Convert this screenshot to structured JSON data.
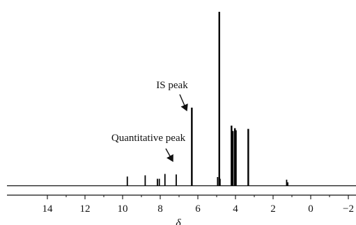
{
  "chart_data": {
    "type": "line",
    "title": "",
    "xlabel": "δ",
    "ylabel": "",
    "xlim": [
      16,
      -2.5
    ],
    "ylim": [
      0,
      1
    ],
    "x_reversed": true,
    "grid": false,
    "legend": "none",
    "xticks": [
      {
        "value": 14,
        "label": "14"
      },
      {
        "value": 12,
        "label": "12"
      },
      {
        "value": 10,
        "label": "10"
      },
      {
        "value": 8,
        "label": "8"
      },
      {
        "value": 6,
        "label": "6"
      },
      {
        "value": 4,
        "label": "4"
      },
      {
        "value": 2,
        "label": "2"
      },
      {
        "value": 0,
        "label": "0"
      },
      {
        "value": -2,
        "label": "−2"
      }
    ],
    "series": [
      {
        "peaks": [
          {
            "x": 9.75,
            "y": 0.053
          },
          {
            "x": 8.8,
            "y": 0.06
          },
          {
            "x": 8.15,
            "y": 0.04
          },
          {
            "x": 8.05,
            "y": 0.04
          },
          {
            "x": 7.75,
            "y": 0.068
          },
          {
            "x": 7.15,
            "y": 0.065
          },
          {
            "x": 6.32,
            "y": 0.449
          },
          {
            "x": 4.95,
            "y": 0.05
          },
          {
            "x": 4.86,
            "y": 1.0
          },
          {
            "x": 4.82,
            "y": 0.04
          },
          {
            "x": 4.21,
            "y": 0.346
          },
          {
            "x": 4.14,
            "y": 0.315
          },
          {
            "x": 4.03,
            "y": 0.331
          },
          {
            "x": 3.98,
            "y": 0.319
          },
          {
            "x": 3.32,
            "y": 0.327
          },
          {
            "x": 1.28,
            "y": 0.035
          },
          {
            "x": 1.22,
            "y": 0.02
          }
        ]
      }
    ],
    "annotations": [
      {
        "text": "IS peak",
        "target_x": 6.32
      },
      {
        "text": "Quantitative peak",
        "target_x": 7.15
      }
    ]
  }
}
